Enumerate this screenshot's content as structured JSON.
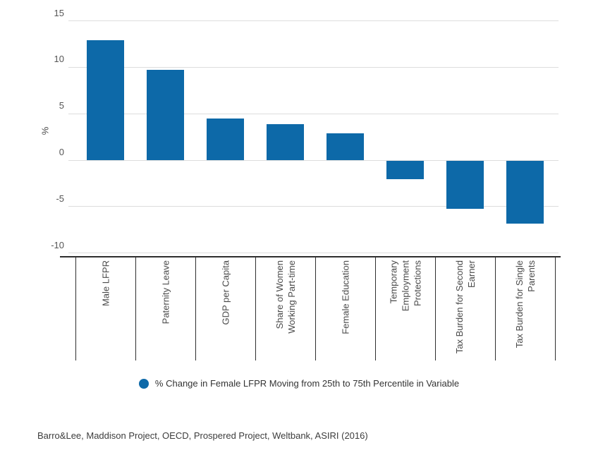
{
  "chart_data": {
    "type": "bar",
    "title": "",
    "ylabel": "%",
    "ylim": [
      -10,
      15
    ],
    "yticks": [
      15,
      10,
      5,
      0,
      -5,
      -10
    ],
    "grid": true,
    "legend_position": "bottom",
    "bar_color": "#0d69a8",
    "grid_color": "#dddddd",
    "axis_color": "#2e2e2e",
    "categories": [
      "Male LFPR",
      "Paternity Leave",
      "GDP per Capita",
      "Share of Women Working Part-time",
      "Female Education",
      "Temporary Employment Protections",
      "Tax Burden for Second Earner",
      "Tax Burden for Single Parents"
    ],
    "category_label_lines": [
      [
        "Male LFPR"
      ],
      [
        "Paternity Leave"
      ],
      [
        "GDP per Capita"
      ],
      [
        "Share of Women",
        "Working Part-time"
      ],
      [
        "Female Education"
      ],
      [
        "Temporary",
        "Employment",
        "Protections"
      ],
      [
        "Tax Burden for Second",
        "Earner"
      ],
      [
        "Tax Burden for Single",
        "Parents"
      ]
    ],
    "series": [
      {
        "name": "% Change in Female LFPR Moving from 25th to 75th Percentile in Variable",
        "values": [
          12.9,
          9.7,
          4.5,
          3.9,
          2.9,
          -2.0,
          -5.2,
          -6.8
        ]
      }
    ]
  },
  "source": {
    "text": "Barro&Lee, Maddison Project, OECD, Prospered Project, Weltbank, ASIRI (2016)"
  }
}
